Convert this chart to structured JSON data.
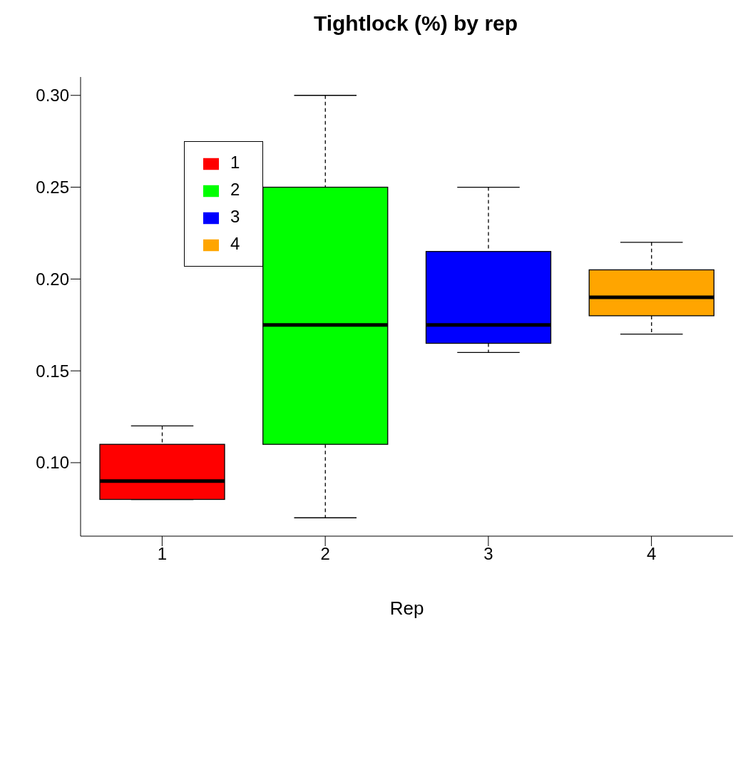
{
  "chart_data": {
    "type": "box",
    "title": "Tightlock (%) by rep",
    "xlabel": "Rep",
    "categories": [
      "1",
      "2",
      "3",
      "4"
    ],
    "series": [
      {
        "name": "1",
        "color": "#ff0000",
        "boxes": [
          {
            "low": 0.08,
            "q1": 0.08,
            "median": 0.09,
            "q3": 0.11,
            "high": 0.12
          },
          null,
          null,
          null
        ]
      },
      {
        "name": "2",
        "color": "#00ff00",
        "boxes": [
          null,
          {
            "low": 0.07,
            "q1": 0.11,
            "median": 0.175,
            "q3": 0.25,
            "high": 0.3
          },
          null,
          null
        ]
      },
      {
        "name": "3",
        "color": "#0000ff",
        "boxes": [
          null,
          null,
          {
            "low": 0.16,
            "q1": 0.165,
            "median": 0.175,
            "q3": 0.215,
            "high": 0.25
          },
          null
        ]
      },
      {
        "name": "4",
        "color": "#ffa500",
        "boxes": [
          null,
          null,
          null,
          {
            "low": 0.17,
            "q1": 0.18,
            "median": 0.19,
            "q3": 0.205,
            "high": 0.22
          }
        ]
      }
    ],
    "ylim": [
      0.06,
      0.31
    ],
    "yticks": [
      {
        "value": 0.1,
        "label": "0.10"
      },
      {
        "value": 0.15,
        "label": "0.15"
      },
      {
        "value": 0.2,
        "label": "0.20"
      },
      {
        "value": 0.25,
        "label": "0.25"
      },
      {
        "value": 0.3,
        "label": "0.30"
      }
    ],
    "legend": "top left"
  }
}
